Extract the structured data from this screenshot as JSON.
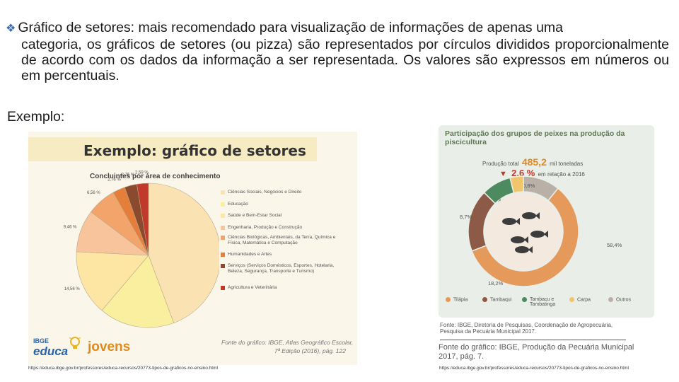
{
  "paragraph": {
    "bullet": "❖",
    "line1": "Gráfico de setores: mais recomendado para visualização de informações de apenas uma",
    "rest": "categoria, os gráficos de setores (ou pizza) são representados por círculos divididos proporcionalmente de acordo com os dados da informação a ser representada. Os valores são expressos em números ou em percentuais."
  },
  "exemplo_label": "Exemplo:",
  "left_card": {
    "title": "Exemplo: gráfico de setores",
    "subtitle": "Concluintes por área de conhecimento",
    "footer_logo_top": "IBGE",
    "footer_logo": "educa",
    "footer_brand": "jovens",
    "source_line1": "Fonte do gráfico: IBGE, Atlas Geográfico Escolar,",
    "source_line2": "7ª Edição (2016), pág. 122",
    "url": "https://educa.ibge.gov.br/professores/educa-recursos/20773-tipos-de-graficos-no-ensino.html"
  },
  "right_card": {
    "title": "Participação dos grupos de peixes na produção da piscicultura",
    "prod_label": "Produção total",
    "prod_value": "485,2",
    "prod_unit": "mil toneladas",
    "var_value": "2,6 %",
    "var_label": "em relação a 2016",
    "source_line1": "Fonte: IBGE, Diretoria de Pesquisas, Coordenação de Agropecuária,",
    "source_line2": "Pesquisa da Pecuária Municipal 2017.",
    "caption_line1": "Fonte do gráfico: IBGE, Produção da Pecuária Municipal",
    "caption_line2": "2017, pág. 7.",
    "url": "https://educa.ibge.gov.br/professores/educa-recursos/20773-tipos-de-graficos-no-ensino.html"
  },
  "chart_data": [
    {
      "type": "pie",
      "title": "Concluintes por área de conhecimento",
      "slices": [
        {
          "name": "Ciências Sociais, Negócios e Direito",
          "value": 44.17,
          "label": "44,17 %",
          "color": "#fbe2b3"
        },
        {
          "name": "Educação",
          "value": 16.85,
          "label": "16,85 %",
          "color": "#f9ef9e"
        },
        {
          "name": "Saúde e Bem-Estar Social",
          "value": 14.56,
          "label": "14,56 %",
          "color": "#fde6a3"
        },
        {
          "name": "Engenharia, Produção e Construção",
          "value": 9.46,
          "label": "9,46 %",
          "color": "#f7c49b"
        },
        {
          "name": "Ciências, Matemática e Computação",
          "value": 6.56,
          "label": "6,56 %",
          "color": "#f3a46b"
        },
        {
          "name": "Humanidades e Artes",
          "value": 2.76,
          "label": "2,76 %",
          "color": "#e57e3b"
        },
        {
          "name": "Serviços",
          "value": 2.76,
          "label": "2,76 %",
          "color": "#8b4a2e"
        },
        {
          "name": "Agricultura e Veterinária",
          "value": 2.59,
          "label": "2,59 %",
          "color": "#c0392b"
        }
      ],
      "legend": [
        "Ciências Sociais, Negócios e Direito",
        "Educação",
        "Saúde e Bem-Estar Social",
        "Engenharia, Produção e Construção",
        "Ciências Biológicas, Ambientais, da Terra, Química e Física, Matemática e Computação",
        "Humanidades e Artes",
        "Serviços (Serviços Domésticos, Esportes, Hotelaria, Beleza, Segurança, Transporte e Turismo)",
        "Agricultura e Veterinária"
      ]
    },
    {
      "type": "pie",
      "title": "Participação dos grupos de peixes na produção da piscicultura",
      "slices": [
        {
          "name": "Tilápia",
          "value": 58.4,
          "label": "58,4%",
          "color": "#e59a5c"
        },
        {
          "name": "Tambaqui",
          "value": 18.2,
          "label": "18,2%",
          "color": "#8e5a48"
        },
        {
          "name": "Tambacu e Tambatinga",
          "value": 8.7,
          "label": "8,7%",
          "color": "#4e8a5f"
        },
        {
          "name": "Carpa",
          "value": 3.9,
          "label": "3,9%",
          "color": "#f0c56b"
        },
        {
          "name": "Outros",
          "value": 10.8,
          "label": "10,8%",
          "color": "#b9b0a8"
        }
      ]
    }
  ]
}
